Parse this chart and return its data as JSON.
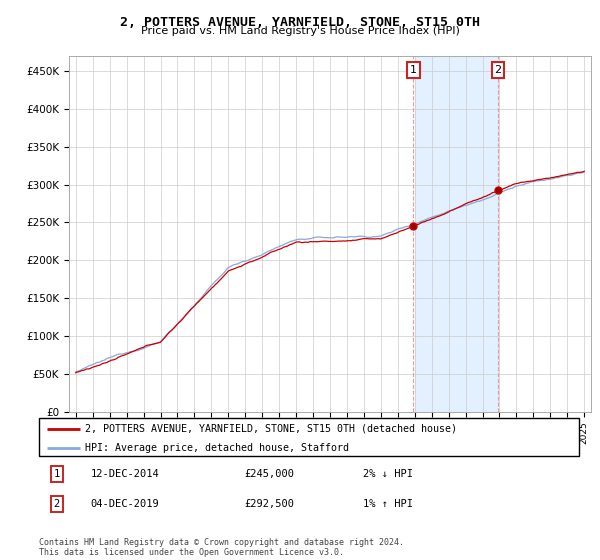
{
  "title": "2, POTTERS AVENUE, YARNFIELD, STONE, ST15 0TH",
  "subtitle": "Price paid vs. HM Land Registry's House Price Index (HPI)",
  "ylim": [
    0,
    470000
  ],
  "yticks": [
    0,
    50000,
    100000,
    150000,
    200000,
    250000,
    300000,
    350000,
    400000,
    450000
  ],
  "ytick_labels": [
    "£0",
    "£50K",
    "£100K",
    "£150K",
    "£200K",
    "£250K",
    "£300K",
    "£350K",
    "£400K",
    "£450K"
  ],
  "sale1_date": "12-DEC-2014",
  "sale1_price": 245000,
  "sale1_hpi_rel": "2% ↓ HPI",
  "sale2_date": "04-DEC-2019",
  "sale2_price": 292500,
  "sale2_hpi_rel": "1% ↑ HPI",
  "legend_line1": "2, POTTERS AVENUE, YARNFIELD, STONE, ST15 0TH (detached house)",
  "legend_line2": "HPI: Average price, detached house, Stafford",
  "footer": "Contains HM Land Registry data © Crown copyright and database right 2024.\nThis data is licensed under the Open Government Licence v3.0.",
  "line_color_sale": "#cc0000",
  "line_color_hpi": "#88aadd",
  "shaded_color": "#ddeeff",
  "sale1_year": 2014.92,
  "sale2_year": 2019.92
}
